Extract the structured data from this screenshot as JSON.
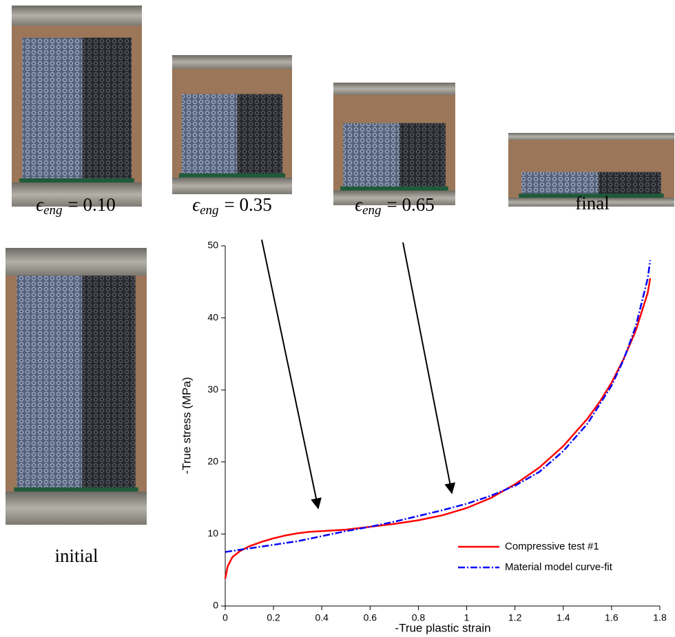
{
  "photos": [
    {
      "symbol": "ϵ",
      "subscript": "eng",
      "text": "= 0.10"
    },
    {
      "symbol": "ϵ",
      "subscript": "eng",
      "text": "= 0.35"
    },
    {
      "symbol": "ϵ",
      "subscript": "eng",
      "text": "= 0.65"
    },
    {
      "text": "final"
    },
    {
      "text": "initial"
    }
  ],
  "chart_data": {
    "type": "line",
    "xlabel": "-True plastic strain",
    "ylabel": "-True stress (MPa)",
    "xlim": [
      0,
      1.8
    ],
    "ylim": [
      0,
      50
    ],
    "xticks": [
      0,
      0.2,
      0.4,
      0.6,
      0.8,
      1,
      1.2,
      1.4,
      1.6,
      1.8
    ],
    "yticks": [
      0,
      10,
      20,
      30,
      40,
      50
    ],
    "grid": false,
    "legend": "lower right",
    "series": [
      {
        "name": "Compressive test #1",
        "color": "#ff0000",
        "style": "solid",
        "x": [
          0,
          0.01,
          0.03,
          0.06,
          0.1,
          0.15,
          0.2,
          0.25,
          0.3,
          0.35,
          0.4,
          0.5,
          0.6,
          0.7,
          0.8,
          0.9,
          1.0,
          1.1,
          1.2,
          1.3,
          1.4,
          1.5,
          1.55,
          1.6,
          1.65,
          1.7,
          1.75,
          1.76
        ],
        "values": [
          3.8,
          5.5,
          6.8,
          7.6,
          8.3,
          8.9,
          9.4,
          9.8,
          10.1,
          10.3,
          10.4,
          10.6,
          11.0,
          11.4,
          11.9,
          12.6,
          13.6,
          15.0,
          16.9,
          19.2,
          22.2,
          26.0,
          28.3,
          31.0,
          34.3,
          38.2,
          43.5,
          45.5
        ]
      },
      {
        "name": "Material model curve-fit",
        "color": "#0000ff",
        "style": "dashdot",
        "x": [
          0,
          0.1,
          0.2,
          0.3,
          0.4,
          0.5,
          0.6,
          0.7,
          0.8,
          0.9,
          1.0,
          1.1,
          1.2,
          1.3,
          1.4,
          1.5,
          1.6,
          1.65,
          1.7,
          1.75,
          1.76
        ],
        "values": [
          7.5,
          8.0,
          8.5,
          9.0,
          9.7,
          10.4,
          11.0,
          11.7,
          12.5,
          13.3,
          14.2,
          15.3,
          16.7,
          18.6,
          21.5,
          25.3,
          30.6,
          34.2,
          38.8,
          45.5,
          48.0
        ]
      }
    ]
  }
}
